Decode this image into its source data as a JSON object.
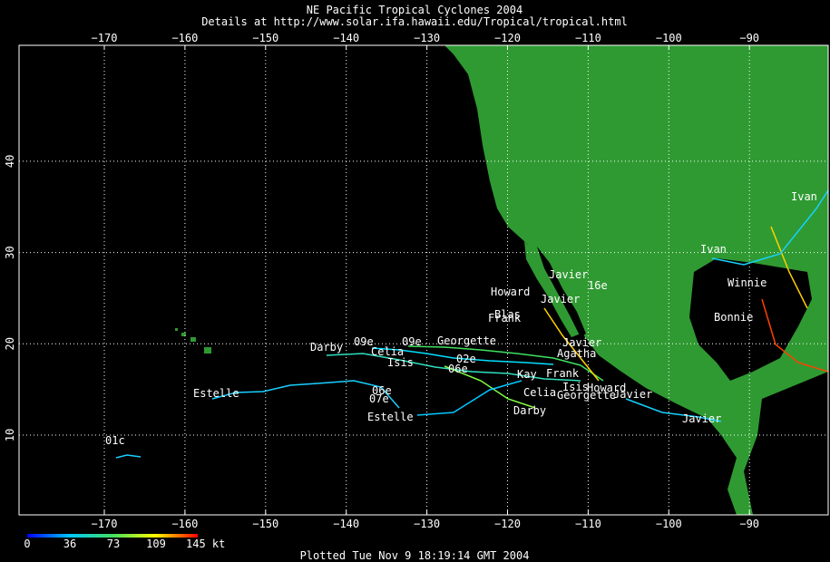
{
  "title": "NE Pacific Tropical Cyclones 2004",
  "subtitle": "Details at http://www.solar.ifa.hawaii.edu/Tropical/tropical.html",
  "lon_ticks": [
    "−170",
    "−160",
    "−150",
    "−140",
    "−130",
    "−120",
    "−110",
    "−100",
    "−90"
  ],
  "lat_ticks": [
    "10",
    "20",
    "30",
    "40"
  ],
  "storm_labels": [
    "Darby",
    "Celia",
    "Isis",
    "09e",
    "09e",
    "Georgette",
    "02e",
    "06e",
    "Kay",
    "Celia",
    "Georgette",
    "Javier",
    "Darby",
    "Estelle",
    "06e",
    "07e",
    "Estelle",
    "01c",
    "Howard",
    "Javier",
    "Javier",
    "16e",
    "Blas",
    "Frank",
    "Javier",
    "Agatha",
    "Frank",
    "Isis",
    "Howard",
    "Javier",
    "Ivan",
    "Ivan",
    "Bonnie",
    "Winnie"
  ],
  "colorbar": {
    "labels": [
      "0",
      "36",
      "73",
      "109",
      "145 kt"
    ]
  },
  "footer": "Plotted Tue Nov 9 18:19:14 GMT 2004"
}
